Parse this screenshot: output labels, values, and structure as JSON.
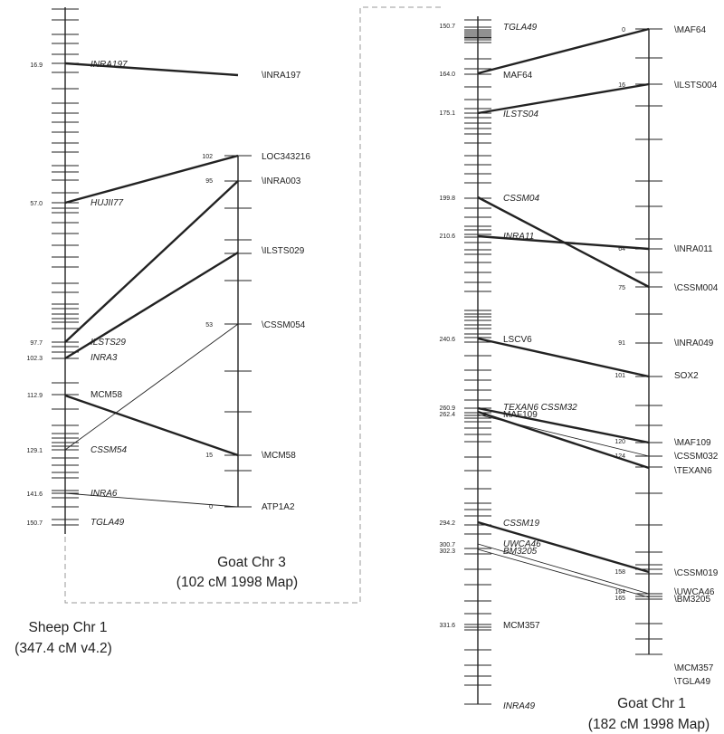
{
  "sheep_chr1": {
    "caption_line1": "Sheep Chr 1",
    "caption_line2": "(347.4 cM v4.2)",
    "markers": [
      {
        "pos": "16.9",
        "name": "INRA197",
        "italic": true
      },
      {
        "pos": "57.0",
        "name": "HUJII77",
        "italic": true
      },
      {
        "pos": "97.7",
        "name": "ILSTS29",
        "italic": true
      },
      {
        "pos": "102.3",
        "name": "INRA3",
        "italic": true
      },
      {
        "pos": "112.9",
        "name": "MCM58",
        "italic": false
      },
      {
        "pos": "129.1",
        "name": "CSSM54",
        "italic": true
      },
      {
        "pos": "141.6",
        "name": "INRA6",
        "italic": true
      },
      {
        "pos": "150.7",
        "name": "TGLA49",
        "italic": true
      }
    ]
  },
  "goat_chr3": {
    "caption_line1": "Goat Chr 3",
    "caption_line2": "(102 cM 1998 Map)",
    "markers": [
      {
        "pos": "",
        "name": "\\INRA197"
      },
      {
        "pos": "102",
        "name": "LOC343216"
      },
      {
        "pos": "95",
        "name": "\\INRA003"
      },
      {
        "pos": "",
        "name": "\\ILSTS029"
      },
      {
        "pos": "53",
        "name": "\\CSSM054"
      },
      {
        "pos": "15",
        "name": "\\MCM58"
      },
      {
        "pos": "0",
        "name": "ATP1A2"
      }
    ]
  },
  "goat_chr1_sheep_side": {
    "markers": [
      {
        "pos": "150.7",
        "name": "TGLA49",
        "italic": true
      },
      {
        "pos": "164.0",
        "name": "MAF64",
        "italic": false
      },
      {
        "pos": "175.1",
        "name": "ILSTS04",
        "italic": true
      },
      {
        "pos": "199.8",
        "name": "CSSM04",
        "italic": true
      },
      {
        "pos": "210.6",
        "name": "INRA11",
        "italic": true
      },
      {
        "pos": "240.6",
        "name": "LSCV6",
        "italic": false
      },
      {
        "pos": "260.9",
        "name": "TEXAN6 CSSM32",
        "italic": true
      },
      {
        "pos": "262.4",
        "name": "MAF109",
        "italic": false
      },
      {
        "pos": "294.2",
        "name": "CSSM19",
        "italic": true
      },
      {
        "pos": "300.7",
        "name": "UWCA46",
        "italic": true
      },
      {
        "pos": "302.3",
        "name": "BM3205",
        "italic": true
      },
      {
        "pos": "331.6",
        "name": "MCM357",
        "italic": false
      },
      {
        "pos": "",
        "name": "INRA49",
        "italic": true
      }
    ]
  },
  "goat_chr1": {
    "caption_line1": "Goat Chr 1",
    "caption_line2": "(182 cM 1998 Map)",
    "markers": [
      {
        "pos": "0",
        "name": "\\MAF64"
      },
      {
        "pos": "16",
        "name": "\\ILSTS004"
      },
      {
        "pos": "64",
        "name": "\\INRA011"
      },
      {
        "pos": "75",
        "name": "\\CSSM004"
      },
      {
        "pos": "91",
        "name": "\\INRA049"
      },
      {
        "pos": "101",
        "name": "SOX2"
      },
      {
        "pos": "120",
        "name": "\\MAF109"
      },
      {
        "pos": "124",
        "name": "\\CSSM032"
      },
      {
        "pos": "",
        "name": "\\TEXAN6"
      },
      {
        "pos": "158",
        "name": "\\CSSM019"
      },
      {
        "pos": "164",
        "name": "\\UWCA46"
      },
      {
        "pos": "165",
        "name": "\\BM3205"
      },
      {
        "pos": "",
        "name": "\\MCM357"
      },
      {
        "pos": "",
        "name": "\\TGLA49"
      }
    ]
  },
  "colors": {
    "line": "#222222",
    "box": "#9a9a9a"
  }
}
